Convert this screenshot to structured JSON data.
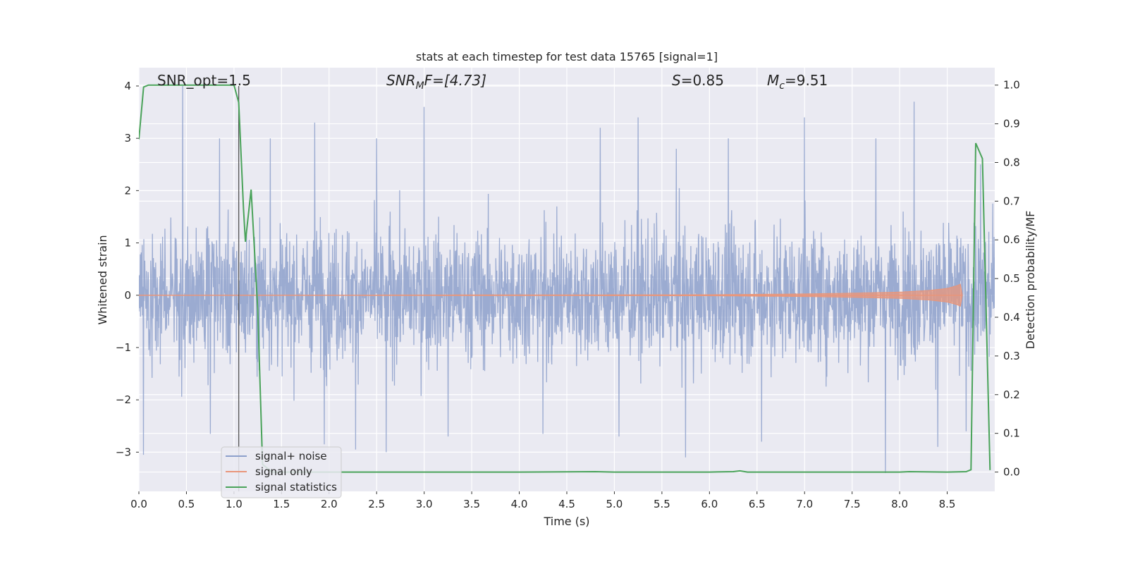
{
  "chart_data": {
    "type": "line",
    "title": "stats at each timestep for test data 15765 [signal=1]",
    "xlabel": "Time (s)",
    "ylabel_left": "Whitened strain",
    "ylabel_right": "Detection probability/MF",
    "xlim": [
      0.0,
      9.0
    ],
    "ylim_left": [
      -3.75,
      4.35
    ],
    "ylim_right": [
      -0.05,
      1.045
    ],
    "x_ticks": [
      "0.0",
      "0.5",
      "1.0",
      "1.5",
      "2.0",
      "2.5",
      "3.0",
      "3.5",
      "4.0",
      "4.5",
      "5.0",
      "5.5",
      "6.0",
      "6.5",
      "7.0",
      "7.5",
      "8.0",
      "8.5"
    ],
    "y_left_ticks": [
      "−3",
      "−2",
      "−1",
      "0",
      "1",
      "2",
      "3",
      "4"
    ],
    "y_right_ticks": [
      "0.0",
      "0.1",
      "0.2",
      "0.3",
      "0.4",
      "0.5",
      "0.6",
      "0.7",
      "0.8",
      "0.9",
      "1.0"
    ],
    "grid": true,
    "legend_position": "lower-left",
    "colors": {
      "background": "#eaeaf2",
      "grid": "#ffffff",
      "noise": "#8da0cb",
      "signal": "#e9967a",
      "stats": "#4aa35a",
      "vline": "#555555"
    },
    "annotations": [
      {
        "label": "snr-opt",
        "plain": "SNR_opt=1.5"
      },
      {
        "label": "snr-mf",
        "base": "SNR",
        "sub": "M",
        "rest": "F=[4.73]"
      },
      {
        "label": "s-value",
        "base": "S",
        "rest": "=0.85"
      },
      {
        "label": "mc-value",
        "base": "M",
        "sub": "c",
        "rest": "=9.51"
      }
    ],
    "vertical_line_x": 1.05,
    "series": [
      {
        "name": "signal+ noise",
        "color": "#8da0cb",
        "axis": "left",
        "description_stats": {
          "typical_range": [
            -2.0,
            2.0
          ],
          "max_peak": 4.0,
          "min_peak": -3.4
        },
        "peaks": [
          [
            0.46,
            4.0
          ],
          [
            0.85,
            3.0
          ],
          [
            1.38,
            3.0
          ],
          [
            1.85,
            3.3
          ],
          [
            2.5,
            3.0
          ],
          [
            3.0,
            3.6
          ],
          [
            4.85,
            3.2
          ],
          [
            5.25,
            3.4
          ],
          [
            5.65,
            2.8
          ],
          [
            6.2,
            3.0
          ],
          [
            6.55,
            3.0
          ],
          [
            7.0,
            3.4
          ],
          [
            7.75,
            3.0
          ],
          [
            8.15,
            3.7
          ],
          [
            8.4,
            3.0
          ],
          [
            8.85,
            2.5
          ],
          [
            0.05,
            -3.05
          ],
          [
            0.75,
            -2.65
          ],
          [
            1.95,
            -2.85
          ],
          [
            2.28,
            -2.95
          ],
          [
            2.6,
            -3.0
          ],
          [
            3.25,
            -2.7
          ],
          [
            4.25,
            -2.65
          ],
          [
            5.05,
            -2.7
          ],
          [
            5.75,
            -3.1
          ],
          [
            6.55,
            -2.8
          ],
          [
            7.85,
            -3.4
          ],
          [
            8.4,
            -2.9
          ],
          [
            8.7,
            -2.6
          ]
        ]
      },
      {
        "name": "signal only",
        "color": "#e9967a",
        "axis": "left",
        "x": [
          0.0,
          6.0,
          7.0,
          7.5,
          8.0,
          8.3,
          8.5,
          8.6,
          8.65,
          8.66
        ],
        "amplitude": [
          0.0,
          0.01,
          0.025,
          0.04,
          0.06,
          0.09,
          0.13,
          0.18,
          0.22,
          0.0
        ]
      },
      {
        "name": "signal statistics",
        "color": "#4aa35a",
        "axis": "right",
        "x": [
          0.0,
          0.05,
          0.1,
          0.3,
          0.6,
          0.9,
          1.0,
          1.05,
          1.1,
          1.12,
          1.18,
          1.25,
          1.3,
          1.4,
          2.0,
          3.0,
          4.0,
          4.8,
          5.0,
          6.0,
          6.25,
          6.32,
          6.4,
          7.0,
          8.0,
          8.1,
          8.5,
          8.7,
          8.75,
          8.8,
          8.87,
          8.95
        ],
        "y": [
          0.86,
          0.995,
          1.0,
          1.0,
          1.0,
          1.0,
          1.0,
          0.955,
          0.68,
          0.595,
          0.73,
          0.42,
          0.02,
          0.0,
          0.0,
          0.0,
          0.0,
          0.001,
          0.0,
          0.0,
          0.001,
          0.003,
          0.0,
          0.0,
          0.0,
          0.001,
          0.0,
          0.001,
          0.006,
          0.85,
          0.81,
          0.005
        ]
      }
    ]
  }
}
